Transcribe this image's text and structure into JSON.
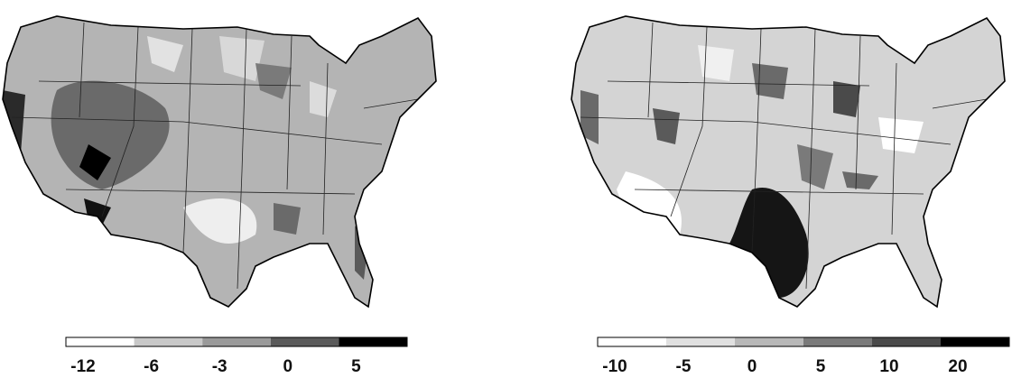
{
  "maps": [
    {
      "legend": {
        "ticks": [
          -12,
          -6,
          -3,
          0,
          5
        ],
        "colors": [
          "#ffffff",
          "#c8c8c8",
          "#9a9a9a",
          "#5a5a5a",
          "#000000"
        ]
      }
    },
    {
      "legend": {
        "ticks": [
          -10,
          -5,
          0,
          5,
          10,
          20
        ],
        "colors": [
          "#ffffff",
          "#e0e0e0",
          "#b8b8b8",
          "#7a7a7a",
          "#4a4a4a",
          "#000000"
        ]
      }
    }
  ]
}
